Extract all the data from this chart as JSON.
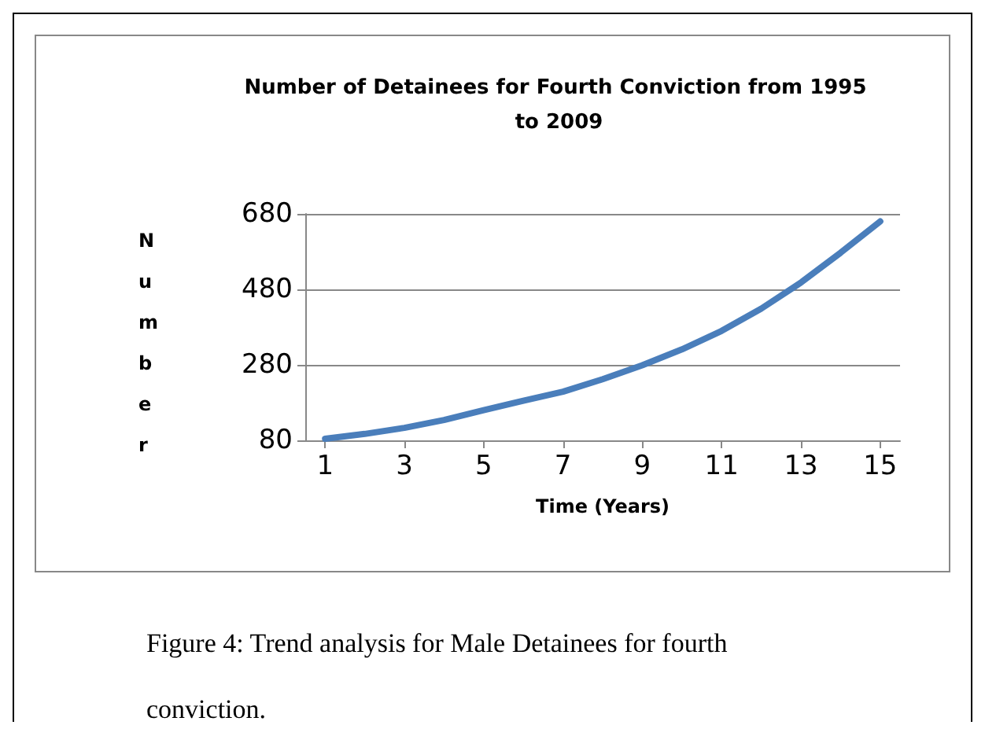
{
  "chart_data": {
    "type": "line",
    "title": "Number of Detainees for Fourth Conviction from 1995 to 2009",
    "xlabel": "Time (Years)",
    "ylabel": "Number",
    "x": [
      1,
      2,
      3,
      4,
      5,
      6,
      7,
      8,
      9,
      10,
      11,
      12,
      13,
      14,
      15
    ],
    "xlim": [
      0.5,
      15.5
    ],
    "xticks": [
      1,
      3,
      5,
      7,
      9,
      11,
      13,
      15
    ],
    "series": [
      {
        "color": "#4a7ebb",
        "values": [
          84,
          97,
          113,
          134,
          160,
          185,
          209,
          242,
          279,
          321,
          370,
          429,
          498,
          577,
          660
        ]
      }
    ],
    "ylim": [
      80,
      680
    ],
    "yticks": [
      80,
      280,
      480,
      680
    ],
    "grid": "y",
    "marker": "none",
    "line_style": "solid",
    "annotations": [
      "Figure 4: Trend analysis for Male Detainees for fourth conviction."
    ]
  }
}
